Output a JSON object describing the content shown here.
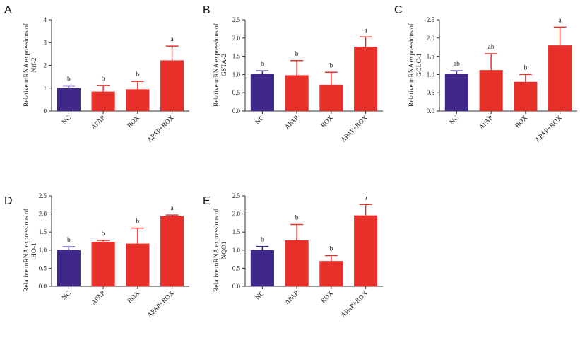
{
  "figure": {
    "background": "#ffffff"
  },
  "colors": {
    "NC": "#3f2889",
    "treatment": "#e8302b",
    "axis": "#333333"
  },
  "chart_data": [
    {
      "panel": "A",
      "type": "bar",
      "ylabel": [
        "Relative mRNA expressions of",
        "Nrf-2"
      ],
      "categories": [
        "NC",
        "APAP",
        "ROX",
        "APAP+ROX"
      ],
      "values": [
        1.0,
        0.85,
        0.95,
        2.22
      ],
      "errors": [
        0.1,
        0.27,
        0.35,
        0.63
      ],
      "significance": [
        "b",
        "b",
        "b",
        "a"
      ],
      "ylim": [
        0,
        4
      ],
      "yticks": [
        "0",
        "1",
        "2",
        "3",
        "4"
      ],
      "ytick_values": [
        0,
        1,
        2,
        3,
        4
      ]
    },
    {
      "panel": "B",
      "type": "bar",
      "ylabel": [
        "Relative mRNA expressions of",
        "GSTA-2"
      ],
      "categories": [
        "NC",
        "APAP",
        "ROX",
        "APAP+ROX"
      ],
      "values": [
        1.02,
        0.98,
        0.72,
        1.76
      ],
      "errors": [
        0.08,
        0.4,
        0.34,
        0.27
      ],
      "significance": [
        "b",
        "b",
        "b",
        "a"
      ],
      "ylim": [
        0,
        2.5
      ],
      "yticks": [
        "0.0",
        "0.5",
        "1.0",
        "1.5",
        "2.0",
        "2.5"
      ],
      "ytick_values": [
        0,
        0.5,
        1.0,
        1.5,
        2.0,
        2.5
      ]
    },
    {
      "panel": "C",
      "type": "bar",
      "ylabel": [
        "Relative mRNA expressions of",
        "GCLC-1"
      ],
      "categories": [
        "NC",
        "APAP",
        "ROX",
        "APAP+ROX"
      ],
      "values": [
        1.02,
        1.12,
        0.8,
        1.8
      ],
      "errors": [
        0.08,
        0.45,
        0.2,
        0.5
      ],
      "significance": [
        "ab",
        "ab",
        "b",
        "a"
      ],
      "ylim": [
        0,
        2.5
      ],
      "yticks": [
        "0.0",
        "0.5",
        "1.0",
        "1.5",
        "2.0",
        "2.5"
      ],
      "ytick_values": [
        0,
        0.5,
        1.0,
        1.5,
        2.0,
        2.5
      ]
    },
    {
      "panel": "D",
      "type": "bar",
      "ylabel": [
        "Relative mRNA expressions of",
        "HO-1"
      ],
      "categories": [
        "NC",
        "APAP",
        "ROX",
        "APAP+ROX"
      ],
      "values": [
        1.0,
        1.23,
        1.18,
        1.94
      ],
      "errors": [
        0.09,
        0.04,
        0.43,
        0.03
      ],
      "significance": [
        "b",
        "b",
        "b",
        "a"
      ],
      "ylim": [
        0,
        2.5
      ],
      "yticks": [
        "0.0",
        "0.5",
        "1.0",
        "1.5",
        "2.0",
        "2.5"
      ],
      "ytick_values": [
        0,
        0.5,
        1.0,
        1.5,
        2.0,
        2.5
      ]
    },
    {
      "panel": "E",
      "type": "bar",
      "ylabel": [
        "Relative mRNA expressions of",
        "NQO1"
      ],
      "categories": [
        "NC",
        "APAP",
        "ROX",
        "APAP+ROX"
      ],
      "values": [
        1.0,
        1.27,
        0.7,
        1.96
      ],
      "errors": [
        0.1,
        0.44,
        0.15,
        0.3
      ],
      "significance": [
        "b",
        "b",
        "b",
        "a"
      ],
      "ylim": [
        0,
        2.5
      ],
      "yticks": [
        "0.0",
        "0.5",
        "1.0",
        "1.5",
        "2.0",
        "2.5"
      ],
      "ytick_values": [
        0,
        0.5,
        1.0,
        1.5,
        2.0,
        2.5
      ]
    }
  ]
}
